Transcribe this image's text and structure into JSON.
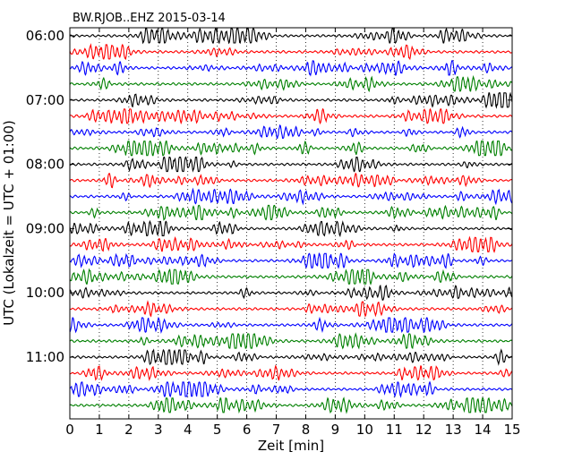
{
  "chart_data": {
    "type": "line",
    "title": "BW.RJOB..EHZ 2015-03-14",
    "xlabel": "Zeit  [min]",
    "ylabel": "UTC (Lokalzeit = UTC + 01:00)",
    "xlim": [
      0,
      15
    ],
    "x_ticks": [
      "0",
      "1",
      "2",
      "3",
      "4",
      "5",
      "6",
      "7",
      "8",
      "9",
      "10",
      "11",
      "12",
      "13",
      "14",
      "15"
    ],
    "y_ticks": [
      "06:00",
      "07:00",
      "08:00",
      "09:00",
      "10:00",
      "11:00"
    ],
    "trace_count": 24,
    "trace_interval_minutes": 15,
    "first_trace_start": "06:00",
    "trace_colors": [
      "#000000",
      "#ff0000",
      "#0000ff",
      "#008000"
    ],
    "grid": "vertical dotted at each minute"
  }
}
